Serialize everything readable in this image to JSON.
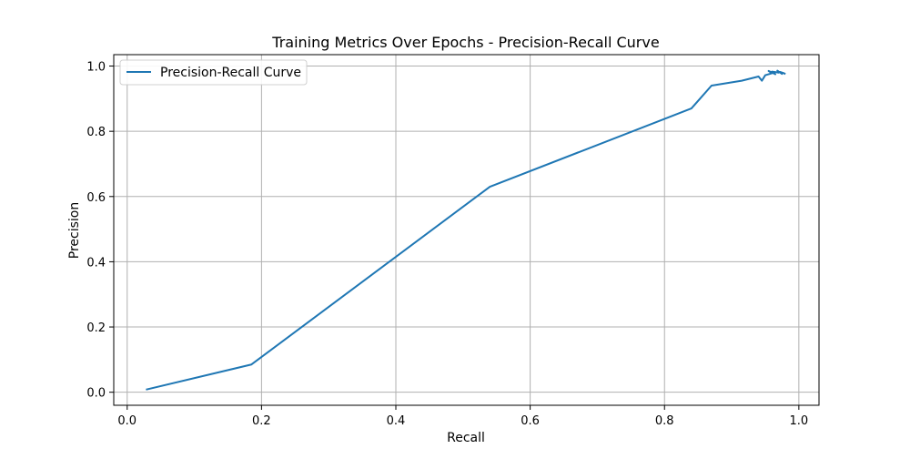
{
  "chart_data": {
    "type": "line",
    "title": "Training Metrics Over Epochs - Precision-Recall Curve",
    "xlabel": "Recall",
    "ylabel": "Precision",
    "xlim": [
      -0.02,
      1.03
    ],
    "ylim": [
      -0.04,
      1.035
    ],
    "xticks": [
      0.0,
      0.2,
      0.4,
      0.6,
      0.8,
      1.0
    ],
    "xtick_labels": [
      "0.0",
      "0.2",
      "0.4",
      "0.6",
      "0.8",
      "1.0"
    ],
    "yticks": [
      0.0,
      0.2,
      0.4,
      0.6,
      0.8,
      1.0
    ],
    "ytick_labels": [
      "0.0",
      "0.2",
      "0.4",
      "0.6",
      "0.8",
      "1.0"
    ],
    "grid": true,
    "legend_position": "top-left",
    "series": [
      {
        "name": "Precision-Recall Curve",
        "color": "#1f77b4",
        "x": [
          0.028,
          0.185,
          0.54,
          0.84,
          0.87,
          0.915,
          0.94,
          0.945,
          0.95,
          0.96,
          0.955,
          0.965,
          0.96,
          0.97,
          0.968,
          0.975,
          0.972,
          0.978,
          0.98
        ],
        "y": [
          0.008,
          0.085,
          0.63,
          0.87,
          0.94,
          0.955,
          0.968,
          0.955,
          0.972,
          0.978,
          0.985,
          0.975,
          0.983,
          0.98,
          0.986,
          0.976,
          0.982,
          0.978,
          0.975
        ]
      }
    ]
  }
}
